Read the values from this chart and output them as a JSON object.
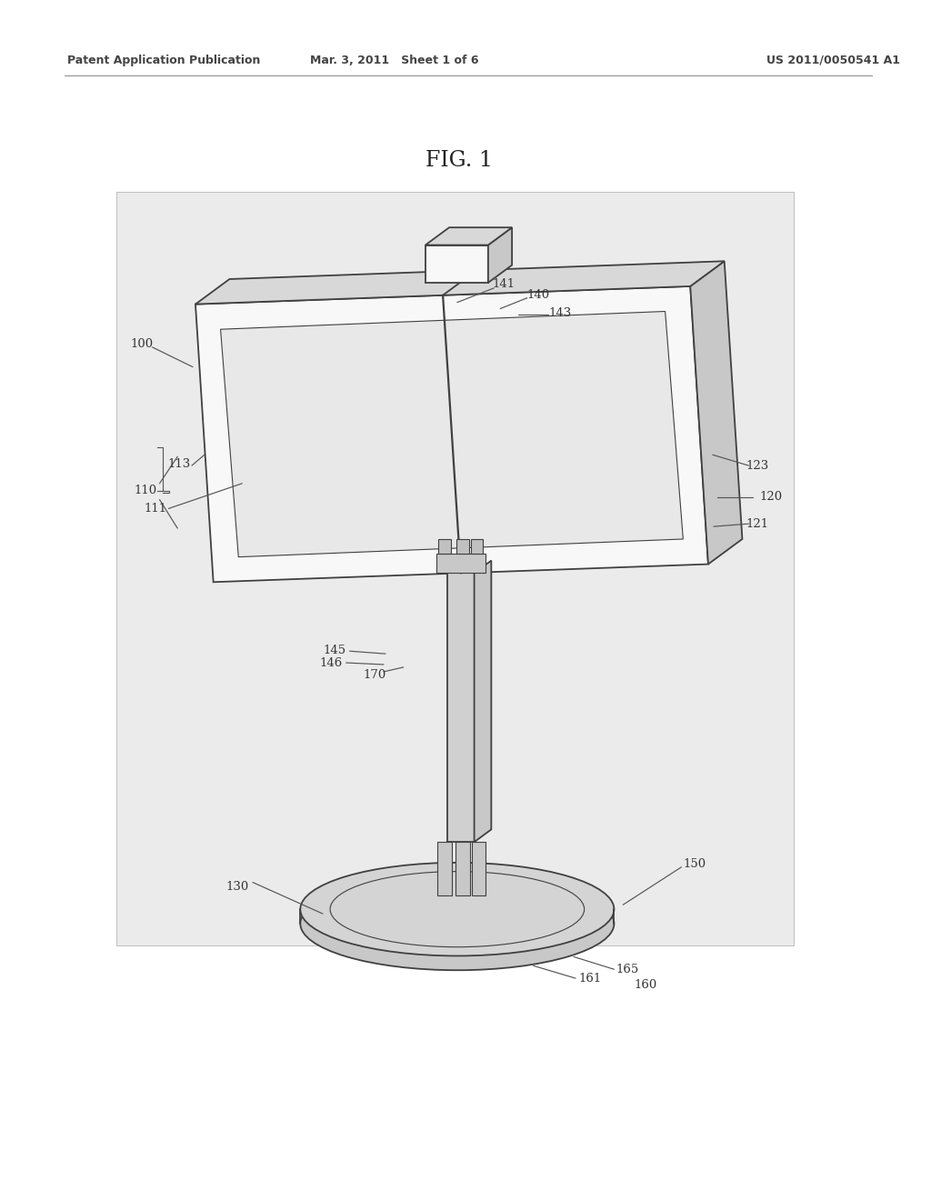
{
  "fig_bg": "#ffffff",
  "diagram_bg": "#ebebeb",
  "header_left": "Patent Application Publication",
  "header_mid": "Mar. 3, 2011   Sheet 1 of 6",
  "header_right": "US 2011/0050541 A1",
  "fig_label": "FIG. 1",
  "lc": "#404040",
  "lw": 1.3,
  "tlw": 0.8,
  "face_white": "#f8f8f8",
  "face_top": "#d8d8d8",
  "face_right": "#c8c8c8",
  "face_screen": "#e8e8e8",
  "face_base": "#d4d4d4"
}
